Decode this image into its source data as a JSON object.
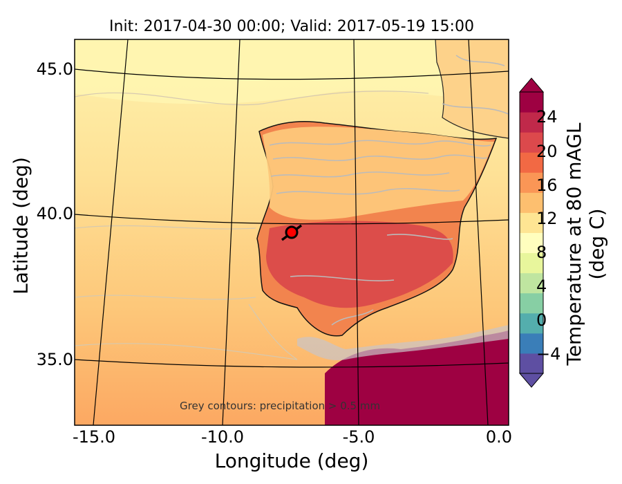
{
  "title": "Init: 2017-04-30 00:00; Valid: 2017-05-19 15:00",
  "axes": {
    "xlabel": "Longitude (deg)",
    "ylabel": "Latitude (deg)",
    "xticks": [
      "-15.0",
      "-10.0",
      "-5.0",
      "0.0"
    ],
    "yticks": [
      "45.0",
      "40.0",
      "35.0"
    ]
  },
  "colorbar": {
    "label": "Temperature at 80 mAGL (deg C)",
    "ticks": [
      "24",
      "20",
      "16",
      "12",
      "8",
      "4",
      "0",
      "−4"
    ],
    "range": [
      -8,
      28
    ],
    "colors": [
      "#5e4fa2",
      "#3a7eb8",
      "#54aead",
      "#87cfa4",
      "#bfe5a0",
      "#e8f69c",
      "#fffebe",
      "#fee593",
      "#fdbf6f",
      "#fa9656",
      "#f26944",
      "#dc494c",
      "#c0294a",
      "#9e0142"
    ]
  },
  "annotation": "Grey contours: precipitation > 0.5 mm",
  "marker": {
    "lon": -7.7,
    "lat": 39.3,
    "color": "#ff0000"
  },
  "colors": {
    "ocean_north": "#fef0a7",
    "ocean_mid": "#fedb8b",
    "ocean_south": "#fdb568",
    "iberia_inland": "#f37a4a",
    "iberia_hot": "#e0524a",
    "africa": "#9e0142",
    "precip_contour": "#bbbbbb"
  }
}
